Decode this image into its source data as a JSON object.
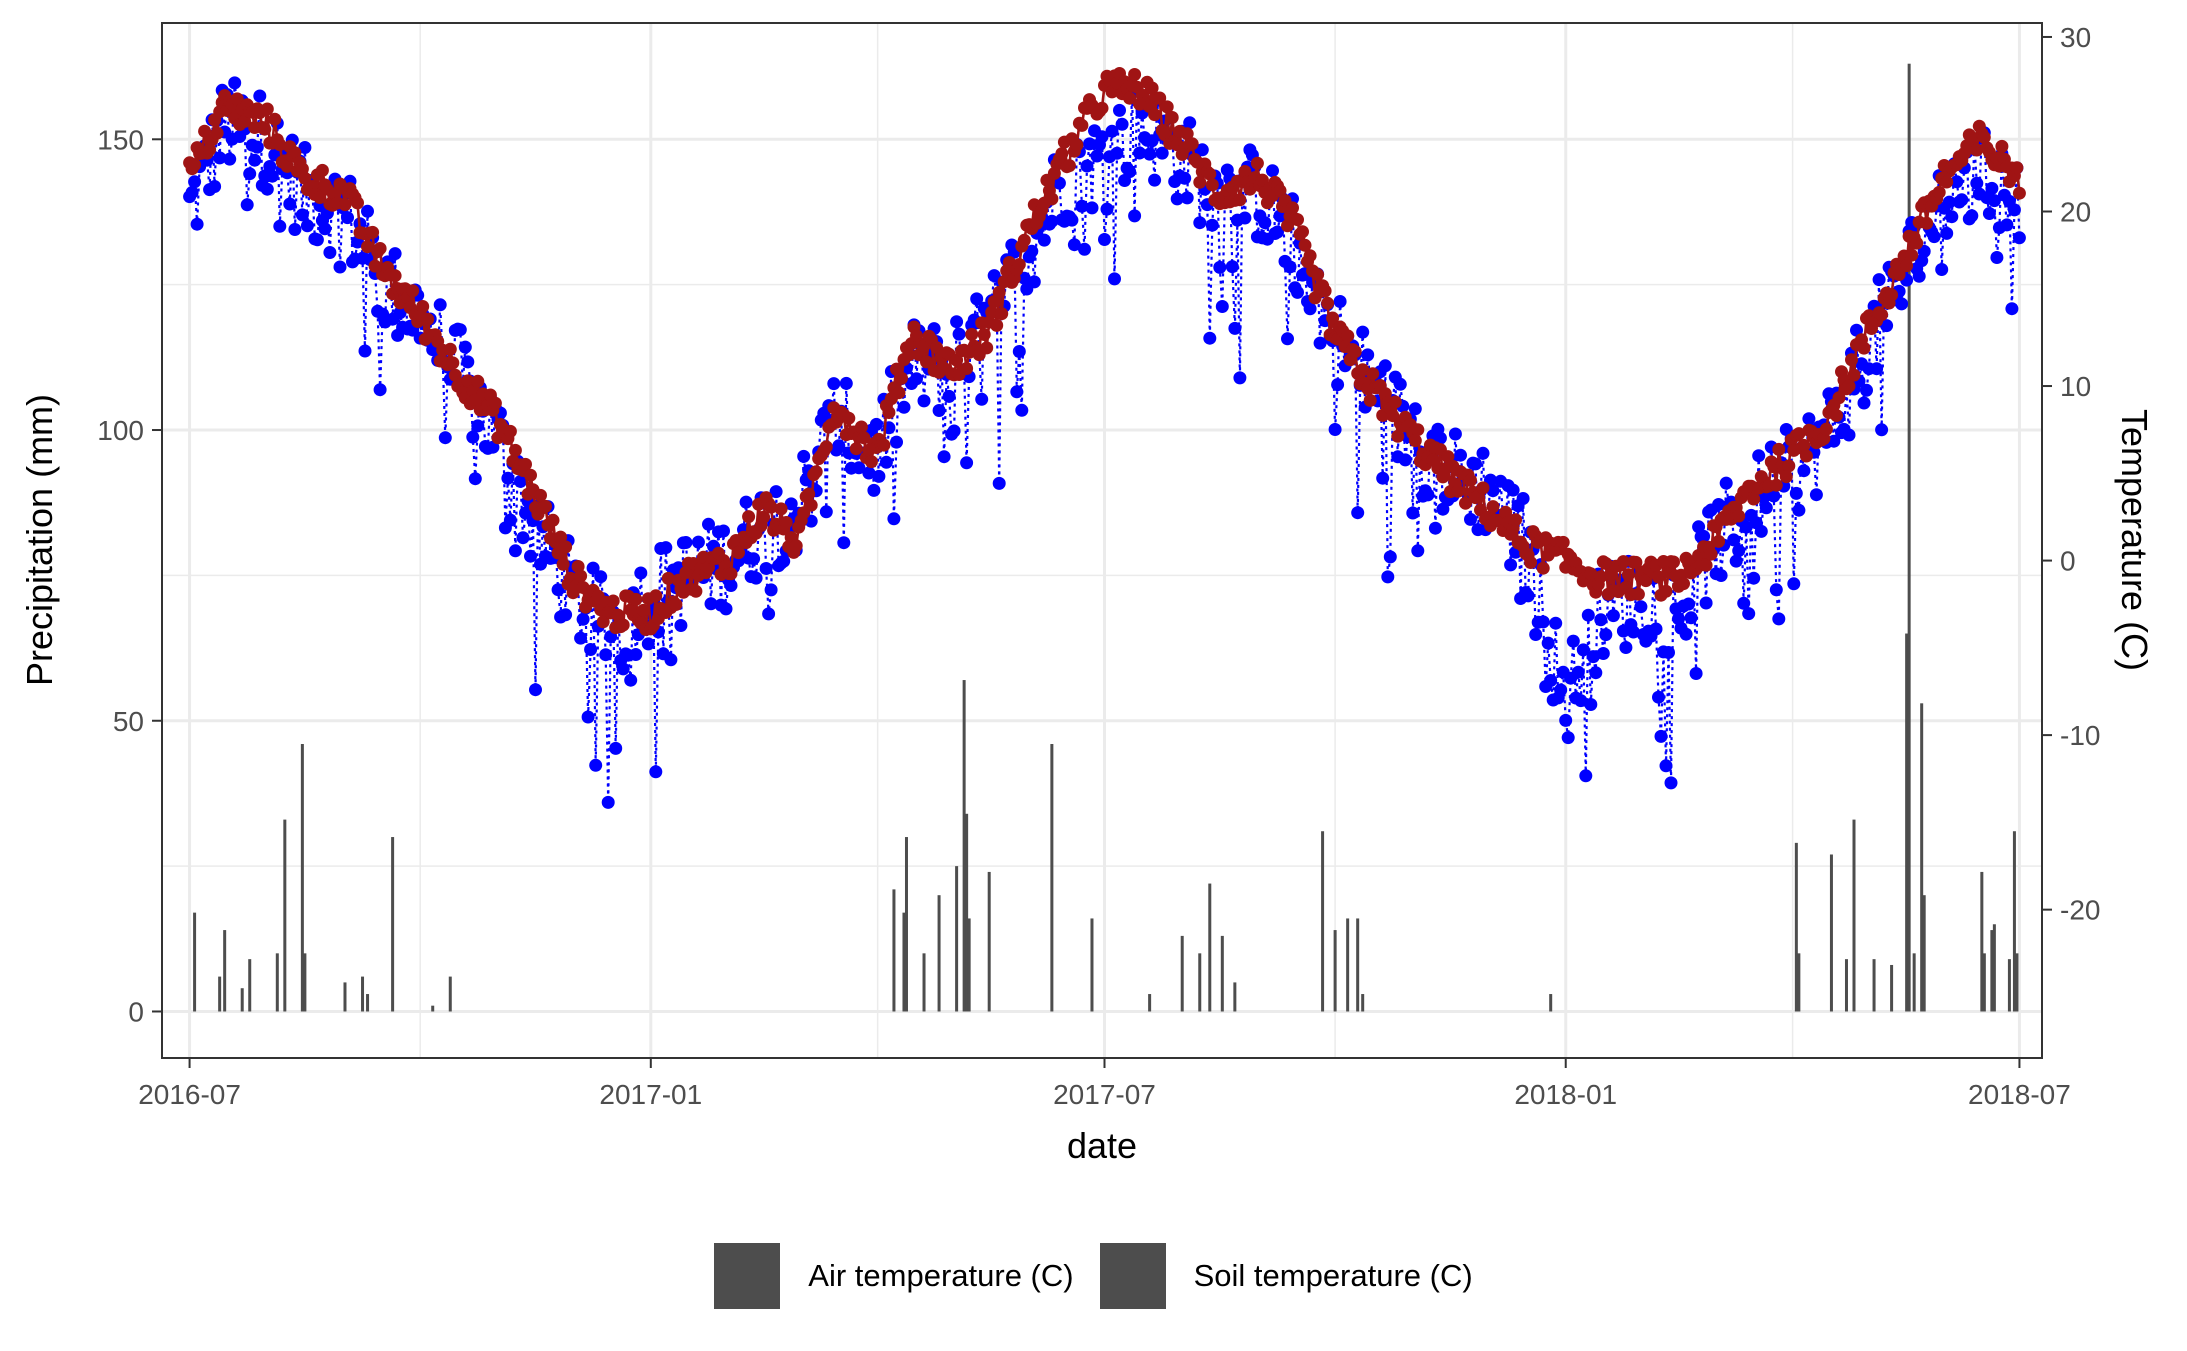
{
  "colors": {
    "air_temperature": "#0000ff",
    "soil_temperature": "#a01414",
    "precipitation": "#4d4d4d",
    "grid": "#ebebeb",
    "panel_border": "#333333"
  },
  "legend": {
    "items": [
      {
        "label": "Air temperature (C)"
      },
      {
        "label": "Soil temperature (C)"
      }
    ]
  },
  "chart_data": {
    "type": "line",
    "title": "",
    "xlabel": "date",
    "ylabel": "Precipitation (mm)",
    "y2label": "Temperature (C)",
    "xlim": [
      "2016-06-20",
      "2018-07-10"
    ],
    "x_ticks": [
      "2016-07",
      "2017-01",
      "2017-07",
      "2018-01",
      "2018-07"
    ],
    "ylim": [
      -8,
      170
    ],
    "y_ticks": [
      0,
      50,
      100,
      150
    ],
    "y2lim": [
      -28.5,
      30.8
    ],
    "y2_ticks": [
      -20,
      -10,
      0,
      10,
      20,
      30
    ],
    "grid": true,
    "legend_position": "bottom",
    "series": [
      {
        "name": "Air temperature (C)",
        "axis": "secondary",
        "style": "dotted line with points",
        "anchors": [
          {
            "x": "2016-07-01",
            "y": 20
          },
          {
            "x": "2016-07-15",
            "y": 25
          },
          {
            "x": "2016-08-01",
            "y": 24
          },
          {
            "x": "2016-08-15",
            "y": 21
          },
          {
            "x": "2016-09-01",
            "y": 20
          },
          {
            "x": "2016-09-15",
            "y": 16
          },
          {
            "x": "2016-10-01",
            "y": 14
          },
          {
            "x": "2016-10-15",
            "y": 11
          },
          {
            "x": "2016-11-01",
            "y": 7
          },
          {
            "x": "2016-11-15",
            "y": 2
          },
          {
            "x": "2016-12-01",
            "y": -2
          },
          {
            "x": "2016-12-15",
            "y": -4
          },
          {
            "x": "2017-01-01",
            "y": -2
          },
          {
            "x": "2017-01-15",
            "y": -1
          },
          {
            "x": "2017-02-01",
            "y": 0
          },
          {
            "x": "2017-02-15",
            "y": 2
          },
          {
            "x": "2017-03-01",
            "y": 3
          },
          {
            "x": "2017-03-15",
            "y": 8
          },
          {
            "x": "2017-04-01",
            "y": 6
          },
          {
            "x": "2017-04-15",
            "y": 11
          },
          {
            "x": "2017-05-01",
            "y": 11
          },
          {
            "x": "2017-05-15",
            "y": 13
          },
          {
            "x": "2017-06-01",
            "y": 18
          },
          {
            "x": "2017-06-15",
            "y": 22
          },
          {
            "x": "2017-07-01",
            "y": 23
          },
          {
            "x": "2017-07-15",
            "y": 25
          },
          {
            "x": "2017-08-01",
            "y": 23
          },
          {
            "x": "2017-08-15",
            "y": 21
          },
          {
            "x": "2017-09-01",
            "y": 21
          },
          {
            "x": "2017-09-15",
            "y": 18
          },
          {
            "x": "2017-10-01",
            "y": 13
          },
          {
            "x": "2017-10-15",
            "y": 10
          },
          {
            "x": "2017-11-01",
            "y": 7
          },
          {
            "x": "2017-11-15",
            "y": 5
          },
          {
            "x": "2017-12-01",
            "y": 4
          },
          {
            "x": "2017-12-15",
            "y": 1
          },
          {
            "x": "2018-01-01",
            "y": -8
          },
          {
            "x": "2018-01-15",
            "y": -3
          },
          {
            "x": "2018-02-01",
            "y": -2
          },
          {
            "x": "2018-02-15",
            "y": -3
          },
          {
            "x": "2018-03-01",
            "y": 1
          },
          {
            "x": "2018-03-15",
            "y": 3
          },
          {
            "x": "2018-04-01",
            "y": 5
          },
          {
            "x": "2018-04-15",
            "y": 7
          },
          {
            "x": "2018-05-01",
            "y": 12
          },
          {
            "x": "2018-05-15",
            "y": 16
          },
          {
            "x": "2018-06-01",
            "y": 21
          },
          {
            "x": "2018-06-15",
            "y": 22
          },
          {
            "x": "2018-07-01",
            "y": 21
          }
        ]
      },
      {
        "name": "Soil temperature (C)",
        "axis": "secondary",
        "style": "solid line with points",
        "anchors": [
          {
            "x": "2016-07-01",
            "y": 22
          },
          {
            "x": "2016-07-15",
            "y": 26
          },
          {
            "x": "2016-08-01",
            "y": 25
          },
          {
            "x": "2016-08-15",
            "y": 22
          },
          {
            "x": "2016-09-01",
            "y": 21
          },
          {
            "x": "2016-09-15",
            "y": 17
          },
          {
            "x": "2016-10-01",
            "y": 14
          },
          {
            "x": "2016-10-15",
            "y": 11
          },
          {
            "x": "2016-11-01",
            "y": 8
          },
          {
            "x": "2016-11-15",
            "y": 4
          },
          {
            "x": "2016-12-01",
            "y": -1
          },
          {
            "x": "2016-12-15",
            "y": -3
          },
          {
            "x": "2017-01-01",
            "y": -3
          },
          {
            "x": "2017-01-15",
            "y": -1
          },
          {
            "x": "2017-02-01",
            "y": 0
          },
          {
            "x": "2017-02-15",
            "y": 3
          },
          {
            "x": "2017-03-01",
            "y": 1
          },
          {
            "x": "2017-03-15",
            "y": 9
          },
          {
            "x": "2017-04-01",
            "y": 6
          },
          {
            "x": "2017-04-15",
            "y": 13
          },
          {
            "x": "2017-05-01",
            "y": 11
          },
          {
            "x": "2017-05-15",
            "y": 13
          },
          {
            "x": "2017-06-01",
            "y": 19
          },
          {
            "x": "2017-06-15",
            "y": 23
          },
          {
            "x": "2017-07-01",
            "y": 27
          },
          {
            "x": "2017-07-15",
            "y": 27
          },
          {
            "x": "2017-08-01",
            "y": 24
          },
          {
            "x": "2017-08-15",
            "y": 21
          },
          {
            "x": "2017-09-01",
            "y": 22
          },
          {
            "x": "2017-09-15",
            "y": 19
          },
          {
            "x": "2017-10-01",
            "y": 13
          },
          {
            "x": "2017-10-15",
            "y": 10
          },
          {
            "x": "2017-11-01",
            "y": 7
          },
          {
            "x": "2017-11-15",
            "y": 5
          },
          {
            "x": "2017-12-01",
            "y": 3
          },
          {
            "x": "2017-12-15",
            "y": 1
          },
          {
            "x": "2018-01-01",
            "y": 0
          },
          {
            "x": "2018-01-15",
            "y": -1
          },
          {
            "x": "2018-02-01",
            "y": -1
          },
          {
            "x": "2018-02-15",
            "y": -1
          },
          {
            "x": "2018-03-01",
            "y": 1
          },
          {
            "x": "2018-03-15",
            "y": 4
          },
          {
            "x": "2018-04-01",
            "y": 6
          },
          {
            "x": "2018-04-15",
            "y": 8
          },
          {
            "x": "2018-05-01",
            "y": 13
          },
          {
            "x": "2018-05-15",
            "y": 17
          },
          {
            "x": "2018-06-01",
            "y": 22
          },
          {
            "x": "2018-06-15",
            "y": 24
          },
          {
            "x": "2018-07-01",
            "y": 22
          }
        ]
      },
      {
        "name": "Precipitation",
        "axis": "primary",
        "style": "bars",
        "points": [
          {
            "x": "2016-07-03",
            "y": 17
          },
          {
            "x": "2016-07-13",
            "y": 6
          },
          {
            "x": "2016-07-15",
            "y": 14
          },
          {
            "x": "2016-07-22",
            "y": 4
          },
          {
            "x": "2016-07-25",
            "y": 9
          },
          {
            "x": "2016-08-05",
            "y": 10
          },
          {
            "x": "2016-08-08",
            "y": 33
          },
          {
            "x": "2016-08-15",
            "y": 46
          },
          {
            "x": "2016-08-16",
            "y": 10
          },
          {
            "x": "2016-09-01",
            "y": 5
          },
          {
            "x": "2016-09-08",
            "y": 6
          },
          {
            "x": "2016-09-10",
            "y": 3
          },
          {
            "x": "2016-09-20",
            "y": 30
          },
          {
            "x": "2016-10-06",
            "y": 1
          },
          {
            "x": "2016-10-13",
            "y": 6
          },
          {
            "x": "2017-04-08",
            "y": 21
          },
          {
            "x": "2017-04-12",
            "y": 17
          },
          {
            "x": "2017-04-13",
            "y": 30
          },
          {
            "x": "2017-04-20",
            "y": 10
          },
          {
            "x": "2017-04-26",
            "y": 20
          },
          {
            "x": "2017-05-03",
            "y": 25
          },
          {
            "x": "2017-05-06",
            "y": 57
          },
          {
            "x": "2017-05-07",
            "y": 34
          },
          {
            "x": "2017-05-08",
            "y": 16
          },
          {
            "x": "2017-05-16",
            "y": 24
          },
          {
            "x": "2017-06-10",
            "y": 46
          },
          {
            "x": "2017-06-26",
            "y": 16
          },
          {
            "x": "2017-07-19",
            "y": 3
          },
          {
            "x": "2017-08-01",
            "y": 13
          },
          {
            "x": "2017-08-08",
            "y": 10
          },
          {
            "x": "2017-08-12",
            "y": 22
          },
          {
            "x": "2017-08-17",
            "y": 13
          },
          {
            "x": "2017-08-22",
            "y": 5
          },
          {
            "x": "2017-09-26",
            "y": 31
          },
          {
            "x": "2017-10-01",
            "y": 14
          },
          {
            "x": "2017-10-06",
            "y": 16
          },
          {
            "x": "2017-10-10",
            "y": 16
          },
          {
            "x": "2017-10-12",
            "y": 3
          },
          {
            "x": "2017-12-26",
            "y": 3
          },
          {
            "x": "2018-04-03",
            "y": 29
          },
          {
            "x": "2018-04-04",
            "y": 10
          },
          {
            "x": "2018-04-17",
            "y": 27
          },
          {
            "x": "2018-04-23",
            "y": 9
          },
          {
            "x": "2018-04-26",
            "y": 33
          },
          {
            "x": "2018-05-04",
            "y": 9
          },
          {
            "x": "2018-05-11",
            "y": 8
          },
          {
            "x": "2018-05-17",
            "y": 65
          },
          {
            "x": "2018-05-18",
            "y": 163
          },
          {
            "x": "2018-05-20",
            "y": 10
          },
          {
            "x": "2018-05-23",
            "y": 53
          },
          {
            "x": "2018-05-24",
            "y": 20
          },
          {
            "x": "2018-06-16",
            "y": 24
          },
          {
            "x": "2018-06-17",
            "y": 10
          },
          {
            "x": "2018-06-20",
            "y": 14
          },
          {
            "x": "2018-06-21",
            "y": 15
          },
          {
            "x": "2018-06-27",
            "y": 9
          },
          {
            "x": "2018-06-29",
            "y": 31
          },
          {
            "x": "2018-06-30",
            "y": 10
          }
        ]
      }
    ]
  }
}
